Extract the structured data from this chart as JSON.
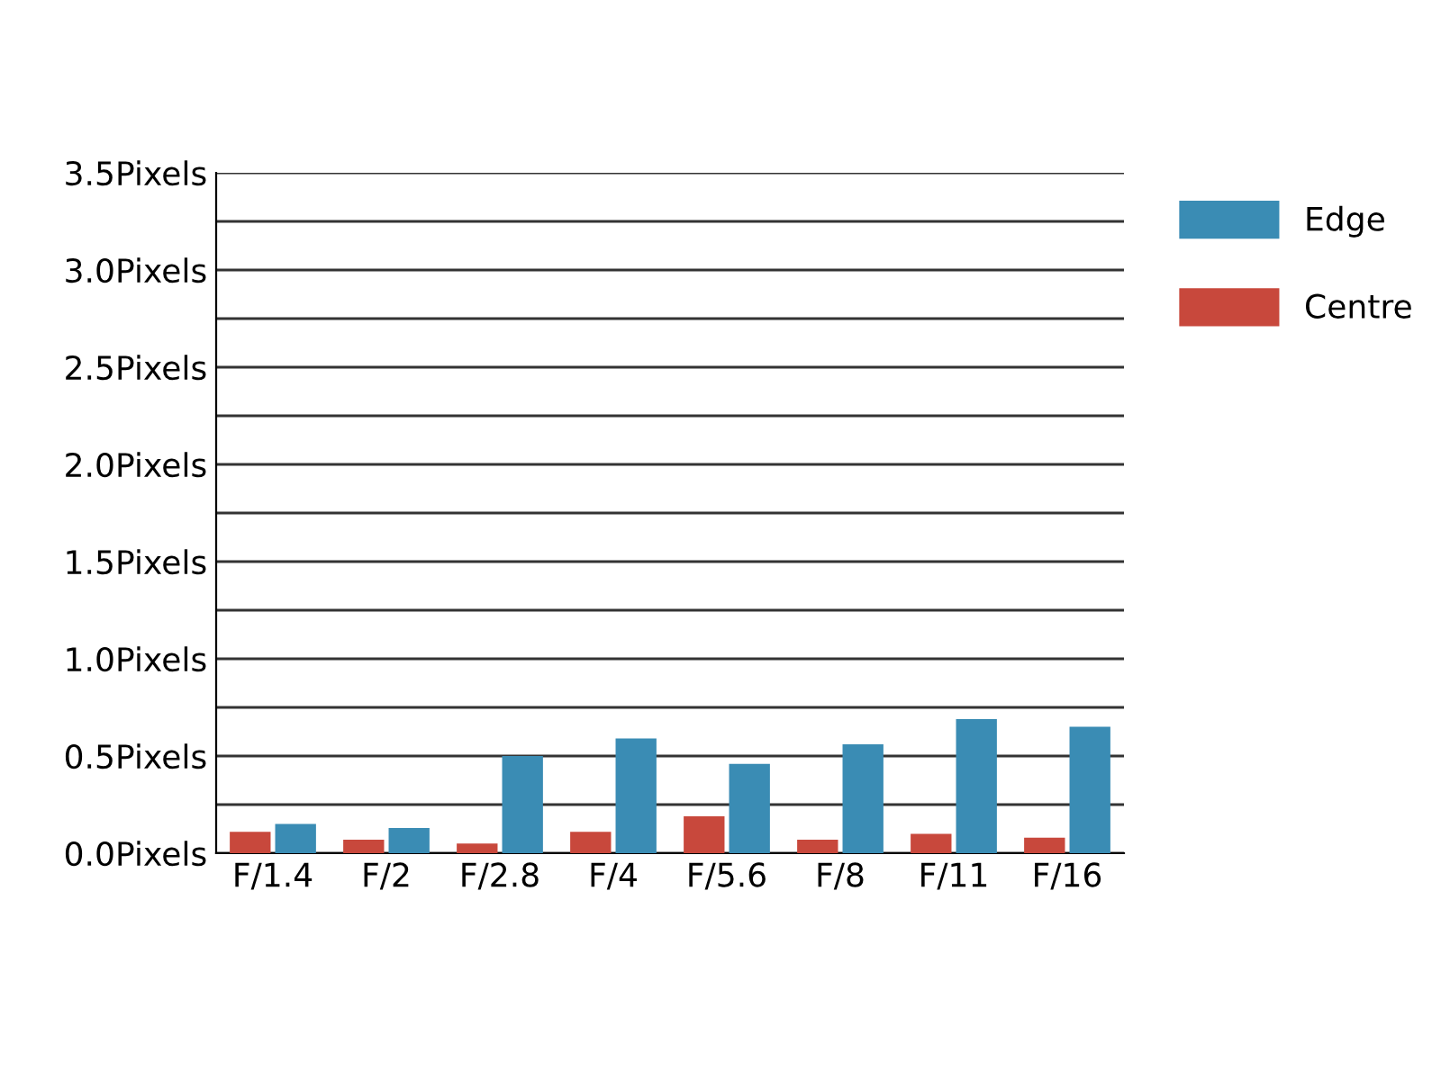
{
  "chart_data": {
    "type": "bar",
    "categories": [
      "F/1.4",
      "F/2",
      "F/2.8",
      "F/4",
      "F/5.6",
      "F/8",
      "F/11",
      "F/16"
    ],
    "series": [
      {
        "name": "Centre",
        "color": "#c8483c",
        "values": [
          0.11,
          0.07,
          0.05,
          0.11,
          0.19,
          0.07,
          0.1,
          0.08
        ]
      },
      {
        "name": "Edge",
        "color": "#3a8cb4",
        "values": [
          0.15,
          0.13,
          0.5,
          0.59,
          0.46,
          0.56,
          0.69,
          0.65
        ]
      }
    ],
    "ylim": [
      0,
      3.5
    ],
    "yticks": [
      {
        "value": 0,
        "label": "0.0Pixels"
      },
      {
        "value": 0.25,
        "label": null
      },
      {
        "value": 0.5,
        "label": "0.5Pixels"
      },
      {
        "value": 0.75,
        "label": null
      },
      {
        "value": 1.0,
        "label": "1.0Pixels"
      },
      {
        "value": 1.25,
        "label": null
      },
      {
        "value": 1.5,
        "label": "1.5Pixels"
      },
      {
        "value": 1.75,
        "label": null
      },
      {
        "value": 2.0,
        "label": "2.0Pixels"
      },
      {
        "value": 2.25,
        "label": null
      },
      {
        "value": 2.5,
        "label": "2.5Pixels"
      },
      {
        "value": 2.75,
        "label": null
      },
      {
        "value": 3.0,
        "label": "3.0Pixels"
      },
      {
        "value": 3.25,
        "label": null
      },
      {
        "value": 3.5,
        "label": "3.5Pixels"
      }
    ],
    "grid": "y",
    "legend": "top right"
  }
}
